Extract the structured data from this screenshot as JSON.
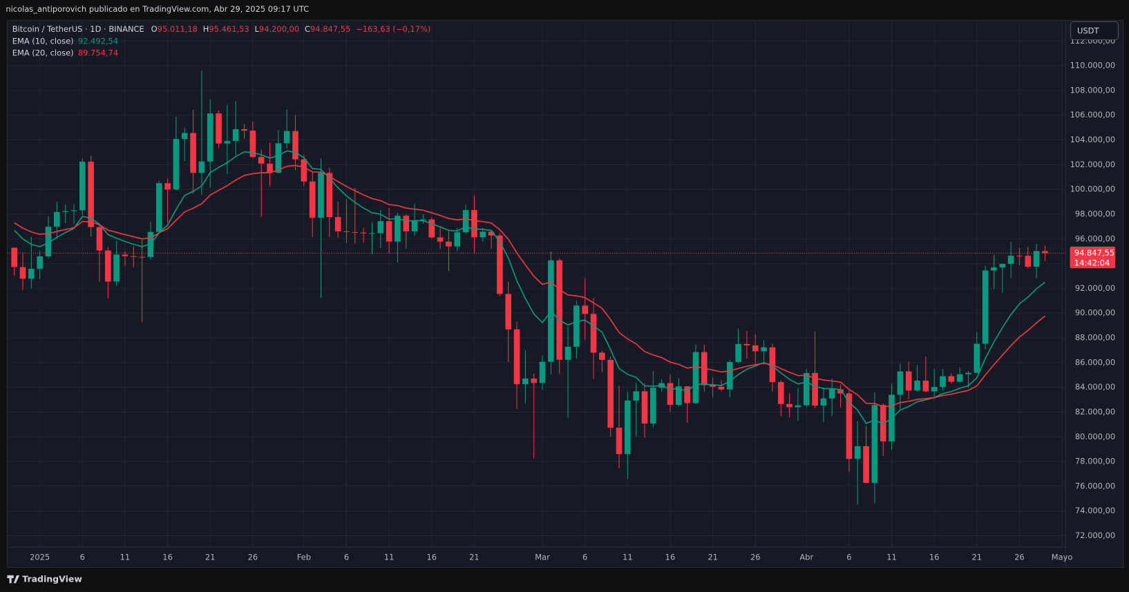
{
  "header": {
    "text": "nicolas_antiporovich publicado en TradingView.com, Abr 29, 2025 09:17 UTC"
  },
  "footer": {
    "brand": "TradingView"
  },
  "chart_data": {
    "type": "candlestick",
    "currency": "USDT",
    "readout": {
      "symbol": "Bitcoin / TetherUS · 1D · BINANCE",
      "items": [
        {
          "key": "O",
          "value": "95.011,18"
        },
        {
          "key": "H",
          "value": "95.461,53"
        },
        {
          "key": "L",
          "value": "94.200,00"
        },
        {
          "key": "C",
          "value": "94.847,55"
        }
      ],
      "change": "−163,63 (−0,17%)"
    },
    "up_color": "#089981",
    "down_color": "#f23645",
    "last_price": {
      "value": 94847.55,
      "label": "94.847,55"
    },
    "countdown": "14:42:04",
    "x": [
      "2024-12-29",
      "2024-12-30",
      "2024-12-31",
      "2025-01-01",
      "2025-01-02",
      "2025-01-03",
      "2025-01-04",
      "2025-01-05",
      "2025-01-06",
      "2025-01-07",
      "2025-01-08",
      "2025-01-09",
      "2025-01-10",
      "2025-01-11",
      "2025-01-12",
      "2025-01-13",
      "2025-01-14",
      "2025-01-15",
      "2025-01-16",
      "2025-01-17",
      "2025-01-18",
      "2025-01-19",
      "2025-01-20",
      "2025-01-21",
      "2025-01-22",
      "2025-01-23",
      "2025-01-24",
      "2025-01-25",
      "2025-01-26",
      "2025-01-27",
      "2025-01-28",
      "2025-01-29",
      "2025-01-30",
      "2025-01-31",
      "2025-02-01",
      "2025-02-02",
      "2025-02-03",
      "2025-02-04",
      "2025-02-05",
      "2025-02-06",
      "2025-02-07",
      "2025-02-08",
      "2025-02-09",
      "2025-02-10",
      "2025-02-11",
      "2025-02-12",
      "2025-02-13",
      "2025-02-14",
      "2025-02-15",
      "2025-02-16",
      "2025-02-17",
      "2025-02-18",
      "2025-02-19",
      "2025-02-20",
      "2025-02-21",
      "2025-02-22",
      "2025-02-23",
      "2025-02-24",
      "2025-02-25",
      "2025-02-26",
      "2025-02-27",
      "2025-02-28",
      "2025-03-01",
      "2025-03-02",
      "2025-03-03",
      "2025-03-04",
      "2025-03-05",
      "2025-03-06",
      "2025-03-07",
      "2025-03-08",
      "2025-03-09",
      "2025-03-10",
      "2025-03-11",
      "2025-03-12",
      "2025-03-13",
      "2025-03-14",
      "2025-03-15",
      "2025-03-16",
      "2025-03-17",
      "2025-03-18",
      "2025-03-19",
      "2025-03-20",
      "2025-03-21",
      "2025-03-22",
      "2025-03-23",
      "2025-03-24",
      "2025-03-25",
      "2025-03-26",
      "2025-03-27",
      "2025-03-28",
      "2025-03-29",
      "2025-03-30",
      "2025-03-31",
      "2025-04-01",
      "2025-04-02",
      "2025-04-03",
      "2025-04-04",
      "2025-04-05",
      "2025-04-06",
      "2025-04-07",
      "2025-04-08",
      "2025-04-09",
      "2025-04-10",
      "2025-04-11",
      "2025-04-12",
      "2025-04-13",
      "2025-04-14",
      "2025-04-15",
      "2025-04-16",
      "2025-04-17",
      "2025-04-18",
      "2025-04-19",
      "2025-04-20",
      "2025-04-21",
      "2025-04-22",
      "2025-04-23",
      "2025-04-24",
      "2025-04-25",
      "2025-04-26",
      "2025-04-27",
      "2025-04-28",
      "2025-04-29"
    ],
    "open": [
      95280,
      93720,
      92780,
      93580,
      94590,
      96980,
      98170,
      98240,
      98310,
      102240,
      96950,
      95060,
      92550,
      94730,
      94600,
      94550,
      94540,
      96560,
      100500,
      99990,
      104080,
      104560,
      101330,
      102260,
      106140,
      103710,
      103910,
      104870,
      104750,
      102620,
      102080,
      101340,
      103730,
      104720,
      102430,
      100640,
      97700,
      101330,
      97760,
      96610,
      96550,
      96510,
      96440,
      96460,
      97430,
      95780,
      97870,
      96610,
      97500,
      97570,
      96120,
      95780,
      95390,
      96530,
      98330,
      96130,
      96580,
      96270,
      91550,
      88680,
      84250,
      84710,
      84350,
      86060,
      94270,
      86220,
      87280,
      90610,
      89930,
      86800,
      86220,
      80730,
      78600,
      82930,
      83680,
      81070,
      83970,
      84340,
      82580,
      84080,
      82720,
      86850,
      84170,
      84040,
      83830,
      86050,
      87500,
      87390,
      86910,
      87230,
      84420,
      82650,
      82390,
      82550,
      85160,
      82520,
      83100,
      83840,
      83500,
      78210,
      79240,
      76270,
      82570,
      79630,
      83400,
      85290,
      83740,
      84540,
      83670,
      84030,
      84900,
      84450,
      85060,
      85170,
      87520,
      93440,
      93690,
      93980,
      94640,
      94630,
      93750,
      95011
    ],
    "high": [
      95330,
      94900,
      96160,
      95000,
      97840,
      98980,
      98780,
      98810,
      102480,
      102720,
      97260,
      95350,
      95840,
      95000,
      95400,
      95940,
      97370,
      100680,
      100870,
      105870,
      104990,
      106420,
      109590,
      107240,
      106390,
      106850,
      107120,
      105290,
      105500,
      103220,
      103780,
      104780,
      106460,
      106010,
      102780,
      101460,
      102500,
      101730,
      99000,
      99200,
      100140,
      96880,
      97320,
      98350,
      98500,
      98120,
      98000,
      98830,
      97970,
      97730,
      97040,
      96740,
      96890,
      98760,
      99500,
      96900,
      96670,
      96500,
      92540,
      89290,
      87000,
      85120,
      86560,
      95000,
      94420,
      88910,
      91000,
      92810,
      91220,
      86940,
      86500,
      84120,
      83620,
      84360,
      84300,
      85310,
      84670,
      85050,
      84760,
      84100,
      87450,
      87440,
      84800,
      84570,
      86200,
      88770,
      88540,
      88290,
      87790,
      87520,
      84570,
      83500,
      83940,
      85490,
      88500,
      83990,
      84720,
      84230,
      83750,
      81240,
      80870,
      83590,
      82700,
      84300,
      85910,
      86100,
      85800,
      86500,
      85500,
      85470,
      85130,
      85600,
      85320,
      88460,
      93820,
      94700,
      94000,
      95770,
      95280,
      95370,
      95600,
      95462
    ],
    "low": [
      93010,
      91860,
      92000,
      92750,
      94410,
      96000,
      97270,
      97230,
      97920,
      96180,
      92500,
      91200,
      92200,
      93830,
      93710,
      89260,
      94300,
      96500,
      97310,
      99940,
      102280,
      99650,
      99550,
      100120,
      103340,
      101260,
      102750,
      104100,
      102520,
      97780,
      100270,
      101330,
      103300,
      101560,
      100280,
      96150,
      91230,
      96150,
      96080,
      95680,
      95620,
      95690,
      94750,
      95260,
      94850,
      94090,
      95220,
      96260,
      97220,
      96050,
      95200,
      93390,
      95000,
      96400,
      94830,
      95770,
      95210,
      91370,
      86050,
      82260,
      82720,
      78260,
      83790,
      85040,
      85080,
      81530,
      86330,
      87850,
      84670,
      85220,
      80000,
      77460,
      76610,
      80050,
      79940,
      80770,
      83630,
      82020,
      82460,
      81130,
      82640,
      83640,
      83180,
      83670,
      83200,
      85940,
      86310,
      85860,
      85850,
      83650,
      81640,
      81570,
      81280,
      82430,
      82320,
      81210,
      81660,
      82370,
      77150,
      74510,
      76240,
      74620,
      78460,
      78940,
      82250,
      83030,
      83680,
      83600,
      83110,
      83740,
      84300,
      84380,
      83950,
      85140,
      87070,
      91940,
      91660,
      92820,
      93870,
      93600,
      92800,
      94200
    ],
    "close": [
      93720,
      92780,
      93580,
      94590,
      96980,
      98170,
      98240,
      98310,
      102240,
      96950,
      95060,
      92550,
      94730,
      94600,
      94550,
      94540,
      96560,
      100500,
      99990,
      104080,
      104560,
      101330,
      102260,
      106140,
      103710,
      103910,
      104870,
      104750,
      102620,
      102080,
      101340,
      103730,
      104720,
      102430,
      100640,
      97700,
      101330,
      97760,
      96610,
      96550,
      96510,
      96440,
      96460,
      97430,
      95780,
      97870,
      96610,
      97500,
      97570,
      96120,
      95780,
      95390,
      96530,
      98330,
      96130,
      96580,
      96270,
      91550,
      88680,
      84250,
      84710,
      84350,
      86060,
      94270,
      86220,
      87280,
      90610,
      89930,
      86800,
      86220,
      80730,
      78600,
      82930,
      83680,
      81070,
      83970,
      84340,
      82580,
      84080,
      82720,
      86850,
      84170,
      84040,
      83830,
      86050,
      87500,
      87390,
      86910,
      87230,
      84420,
      82650,
      82390,
      82550,
      85160,
      82520,
      83100,
      83840,
      83500,
      78210,
      79240,
      76270,
      82570,
      79630,
      83400,
      85290,
      83740,
      84540,
      83670,
      84030,
      84900,
      84450,
      85060,
      85170,
      87520,
      93440,
      93690,
      93980,
      94640,
      94630,
      93750,
      95011,
      94848
    ],
    "lines": [
      {
        "name": "EMA (10, close)",
        "color": "#089981",
        "last_label": "92.492,54",
        "values": [
          96700,
          95990,
          95550,
          95380,
          95670,
          96120,
          96510,
          96840,
          97820,
          97660,
          97190,
          96350,
          96050,
          95790,
          95560,
          95380,
          95590,
          96480,
          97120,
          98390,
          99510,
          99840,
          100280,
          101350,
          101780,
          102160,
          102660,
          103040,
          102960,
          102800,
          102530,
          102750,
          103110,
          102990,
          102560,
          101680,
          101620,
          100910,
          100130,
          99480,
          98940,
          98490,
          98120,
          97990,
          97590,
          97640,
          97450,
          97460,
          97480,
          97230,
          96970,
          96680,
          96650,
          96960,
          96810,
          96770,
          96680,
          95750,
          94460,
          92610,
          91170,
          89930,
          89230,
          90140,
          89430,
          89040,
          89320,
          89430,
          88950,
          88460,
          87050,
          85520,
          85050,
          84800,
          84120,
          84090,
          84140,
          83850,
          83890,
          83680,
          84260,
          84240,
          84210,
          84140,
          84490,
          85030,
          85460,
          85720,
          86000,
          85710,
          85160,
          84650,
          84270,
          84430,
          84080,
          83900,
          83890,
          83820,
          82800,
          82150,
          81080,
          81350,
          81040,
          81470,
          82160,
          82450,
          82830,
          82980,
          83170,
          83490,
          83660,
          83920,
          84140,
          84760,
          86340,
          87670,
          88820,
          89880,
          90740,
          91290,
          91970,
          92493
        ]
      },
      {
        "name": "EMA (20, close)",
        "color": "#f23645",
        "last_label": "89.754,74",
        "values": [
          97300,
          96870,
          96560,
          96370,
          96430,
          96600,
          96750,
          96900,
          97410,
          97370,
          97150,
          96710,
          96520,
          96340,
          96170,
          96010,
          96060,
          96490,
          96820,
          97510,
          98180,
          98480,
          98840,
          99540,
          99930,
          100310,
          100750,
          101130,
          101270,
          101350,
          101350,
          101570,
          101870,
          101930,
          101800,
          101410,
          101400,
          101060,
          100630,
          100240,
          99890,
          99560,
          99260,
          99090,
          98770,
          98690,
          98490,
          98400,
          98320,
          98110,
          97890,
          97650,
          97540,
          97620,
          97480,
          97390,
          97280,
          96740,
          95970,
          94860,
          93890,
          92980,
          92320,
          92510,
          91910,
          91470,
          91390,
          91250,
          90830,
          90390,
          89470,
          88430,
          87910,
          87510,
          86890,
          86620,
          86400,
          86040,
          85850,
          85550,
          85680,
          85530,
          85390,
          85240,
          85320,
          85520,
          85700,
          85820,
          85950,
          85810,
          85510,
          85210,
          84950,
          84970,
          84740,
          84590,
          84510,
          84420,
          83830,
          83390,
          82710,
          82700,
          82410,
          82500,
          82770,
          82860,
          83020,
          83080,
          83170,
          83340,
          83440,
          83600,
          83750,
          84110,
          85000,
          85820,
          86600,
          87360,
          88060,
          88600,
          89210,
          89755
        ]
      }
    ],
    "xlim": [
      "2024-12-28",
      "2025-05-01"
    ],
    "xticks": [
      {
        "value": "2025-01-01",
        "label": "2025"
      },
      {
        "value": "2025-01-06",
        "label": "6"
      },
      {
        "value": "2025-01-11",
        "label": "11"
      },
      {
        "value": "2025-01-16",
        "label": "16"
      },
      {
        "value": "2025-01-21",
        "label": "21"
      },
      {
        "value": "2025-01-26",
        "label": "26"
      },
      {
        "value": "2025-02-01",
        "label": "Feb"
      },
      {
        "value": "2025-02-06",
        "label": "6"
      },
      {
        "value": "2025-02-11",
        "label": "11"
      },
      {
        "value": "2025-02-16",
        "label": "16"
      },
      {
        "value": "2025-02-21",
        "label": "21"
      },
      {
        "value": "2025-03-01",
        "label": "Mar"
      },
      {
        "value": "2025-03-06",
        "label": "6"
      },
      {
        "value": "2025-03-11",
        "label": "11"
      },
      {
        "value": "2025-03-16",
        "label": "16"
      },
      {
        "value": "2025-03-21",
        "label": "21"
      },
      {
        "value": "2025-03-26",
        "label": "26"
      },
      {
        "value": "2025-04-01",
        "label": "Abr"
      },
      {
        "value": "2025-04-06",
        "label": "6"
      },
      {
        "value": "2025-04-11",
        "label": "11"
      },
      {
        "value": "2025-04-16",
        "label": "16"
      },
      {
        "value": "2025-04-21",
        "label": "21"
      },
      {
        "value": "2025-04-26",
        "label": "26"
      },
      {
        "value": "2025-05-01",
        "label": "Mayo"
      }
    ],
    "ylim": [
      71070,
      113670
    ],
    "yticks": [
      {
        "value": 72000,
        "label": "72.000,00"
      },
      {
        "value": 74000,
        "label": "74.000,00"
      },
      {
        "value": 76000,
        "label": "76.000,00"
      },
      {
        "value": 78000,
        "label": "78.000,00"
      },
      {
        "value": 80000,
        "label": "80.000,00"
      },
      {
        "value": 82000,
        "label": "82.000,00"
      },
      {
        "value": 84000,
        "label": "84.000,00"
      },
      {
        "value": 86000,
        "label": "86.000,00"
      },
      {
        "value": 88000,
        "label": "88.000,00"
      },
      {
        "value": 90000,
        "label": "90.000,00"
      },
      {
        "value": 92000,
        "label": "92.000,00"
      },
      {
        "value": 94000,
        "label": "94.000,00"
      },
      {
        "value": 96000,
        "label": "96.000,00"
      },
      {
        "value": 98000,
        "label": "98.000,00"
      },
      {
        "value": 100000,
        "label": "100.000,00"
      },
      {
        "value": 102000,
        "label": "102.000,00"
      },
      {
        "value": 104000,
        "label": "104.000,00"
      },
      {
        "value": 106000,
        "label": "106.000,00"
      },
      {
        "value": 108000,
        "label": "108.000,00"
      },
      {
        "value": 110000,
        "label": "110.000,00"
      },
      {
        "value": 112000,
        "label": "112.000,00"
      }
    ],
    "grid": true
  }
}
